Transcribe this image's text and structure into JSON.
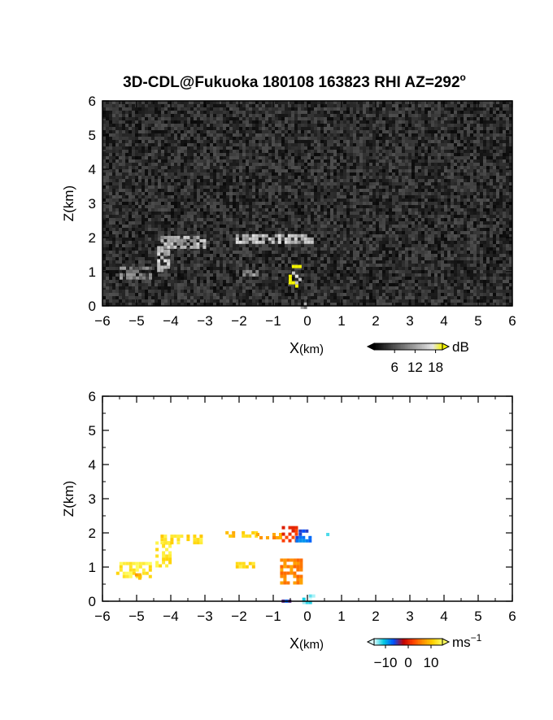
{
  "title": "3D-CDL@Fukuoka 180108 163823 RHI AZ=292",
  "title_superscript": "o",
  "chart_data": [
    {
      "type": "heatmap",
      "panel": "top",
      "quantity": "SNR",
      "xlabel_main": "X",
      "xlabel_unit": "(km)",
      "ylabel": "Z(km)",
      "xlim": [
        -6,
        6
      ],
      "ylim": [
        0,
        6
      ],
      "x_ticks": [
        "−6",
        "−5",
        "−4",
        "−3",
        "−2",
        "−1",
        "0",
        "1",
        "2",
        "3",
        "4",
        "5",
        "6"
      ],
      "y_ticks": [
        "0",
        "1",
        "2",
        "3",
        "4",
        "5",
        "6"
      ],
      "background": "noise",
      "colorbar": {
        "unit": "dB",
        "range": [
          0,
          20
        ],
        "tick_labels": [
          "6",
          "12",
          "18"
        ],
        "tick_values": [
          6,
          12,
          18
        ],
        "colors": [
          "#000000",
          "#262626",
          "#4d4d4d",
          "#737373",
          "#999999",
          "#bfbfbf",
          "#e6e6e6",
          "#f5f500"
        ]
      },
      "features": [
        {
          "x": [
            -5.5,
            -4.6
          ],
          "z": [
            0.8,
            1.15
          ],
          "level": 0.55
        },
        {
          "x": [
            -4.4,
            -4.05
          ],
          "z": [
            1.05,
            1.75
          ],
          "level": 0.8
        },
        {
          "x": [
            -4.3,
            -3.0
          ],
          "z": [
            1.75,
            2.05
          ],
          "level": 0.75
        },
        {
          "x": [
            -2.1,
            0.1
          ],
          "z": [
            1.9,
            2.1
          ],
          "level": 0.8
        },
        {
          "x": [
            -0.55,
            -0.25
          ],
          "z": [
            0.6,
            1.2
          ],
          "level": 0.95
        },
        {
          "x": [
            -1.9,
            -1.5
          ],
          "z": [
            0.95,
            1.05
          ],
          "level": 0.6
        },
        {
          "x": [
            -0.2,
            0.05
          ],
          "z": [
            0.0,
            0.1
          ],
          "level": 0.6
        }
      ]
    },
    {
      "type": "heatmap",
      "panel": "bottom",
      "quantity": "Doppler velocity",
      "xlabel_main": "X",
      "xlabel_unit": "(km)",
      "ylabel": "Z(km)",
      "xlim": [
        -6,
        6
      ],
      "ylim": [
        0,
        6
      ],
      "x_ticks": [
        "−6",
        "−5",
        "−4",
        "−3",
        "−2",
        "−1",
        "0",
        "1",
        "2",
        "3",
        "4",
        "5",
        "6"
      ],
      "y_ticks": [
        "0",
        "1",
        "2",
        "3",
        "4",
        "5",
        "6"
      ],
      "colorbar": {
        "unit": "ms",
        "unit_superscript": "−1",
        "range": [
          -15,
          15
        ],
        "tick_labels": [
          "−10",
          "0",
          "10"
        ],
        "tick_values": [
          -10,
          0,
          10
        ],
        "colors": [
          "#e0ffff",
          "#00c8e0",
          "#0050ff",
          "#c00000",
          "#ff4000",
          "#ff9000",
          "#ffd000",
          "#ffff60"
        ]
      },
      "features": [
        {
          "x": [
            -5.6,
            -4.6
          ],
          "z": [
            0.7,
            1.15
          ],
          "velocity": 13
        },
        {
          "x": [
            -5.05,
            -4.95
          ],
          "z": [
            0.72,
            0.82
          ],
          "velocity": 9
        },
        {
          "x": [
            -4.45,
            -4.05
          ],
          "z": [
            1.05,
            1.75
          ],
          "velocity": 13
        },
        {
          "x": [
            -4.3,
            -3.15
          ],
          "z": [
            1.75,
            1.95
          ],
          "velocity": 12
        },
        {
          "x": [
            -2.4,
            -1.5
          ],
          "z": [
            1.9,
            2.05
          ],
          "velocity": 10
        },
        {
          "x": [
            -1.5,
            -0.75
          ],
          "z": [
            1.85,
            2.0
          ],
          "velocity": 7
        },
        {
          "x": [
            -0.75,
            -0.3
          ],
          "z": [
            1.8,
            2.2
          ],
          "velocity": 1
        },
        {
          "x": [
            -0.35,
            0.1
          ],
          "z": [
            1.8,
            2.1
          ],
          "velocity": -7
        },
        {
          "x": [
            0.55,
            0.65
          ],
          "z": [
            1.95,
            2.0
          ],
          "velocity": -12
        },
        {
          "x": [
            -2.1,
            -1.6
          ],
          "z": [
            1.05,
            1.15
          ],
          "velocity": 12
        },
        {
          "x": [
            -0.8,
            -0.2
          ],
          "z": [
            0.5,
            1.25
          ],
          "velocity": 6
        },
        {
          "x": [
            -0.15,
            0.15
          ],
          "z": [
            0.0,
            0.2
          ],
          "velocity": -13
        },
        {
          "x": [
            -0.85,
            -0.55
          ],
          "z": [
            0.0,
            0.05
          ],
          "velocity": -6
        }
      ]
    }
  ]
}
